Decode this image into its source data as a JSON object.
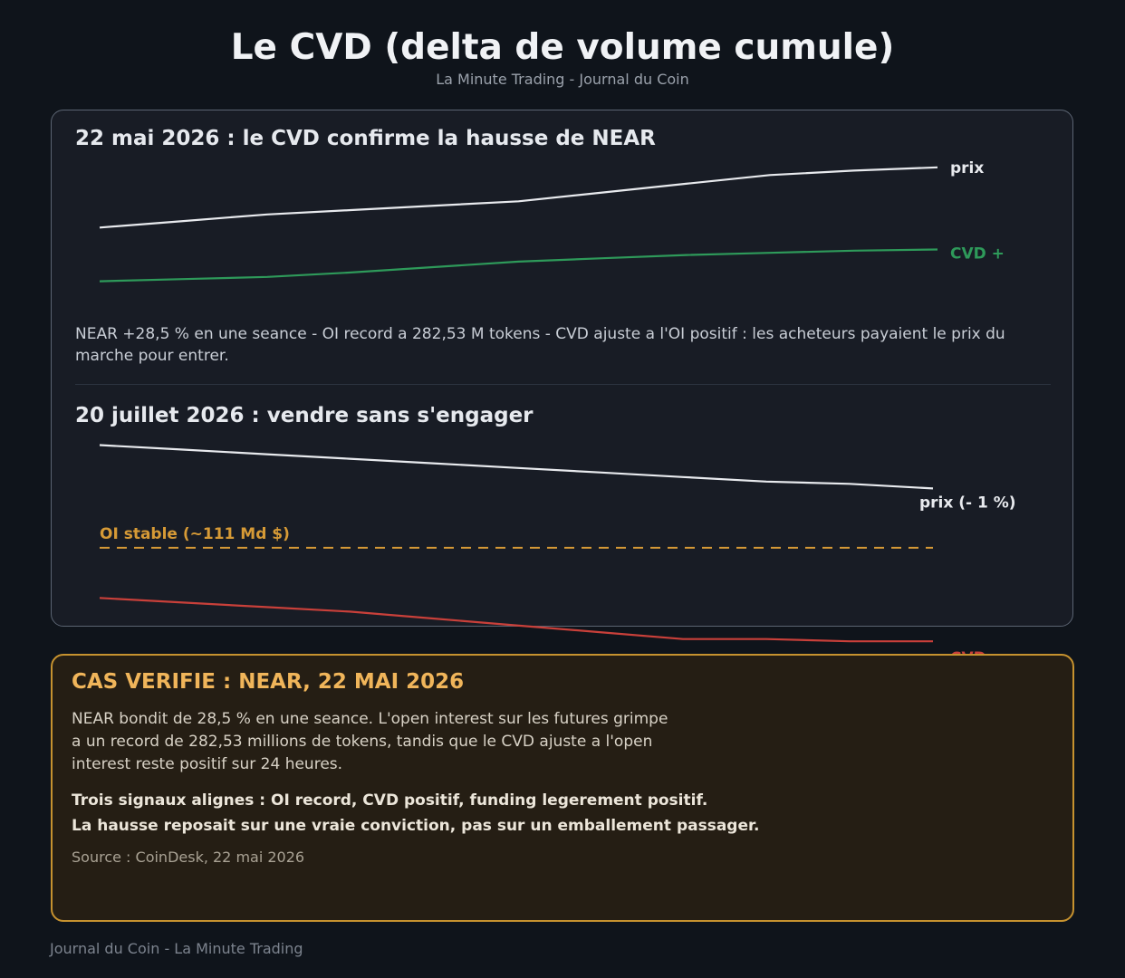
{
  "title": "Le CVD (delta de volume cumule)",
  "subtitle": "La Minute Trading - Journal du Coin",
  "colors": {
    "price": "#e8eaee",
    "cvd_positive": "#2e9a5a",
    "cvd_negative": "#c9403a",
    "oi": "#d69a36",
    "accent": "#f0b55a"
  },
  "section1": {
    "title": "22 mai 2026 : le CVD confirme la hausse de NEAR",
    "description": "NEAR +28,5 % en une seance - OI record a 282,53 M tokens - CVD ajuste a l'OI positif : les acheteurs payaient le prix du marche pour entrer."
  },
  "section2": {
    "title": "20 juillet 2026 : vendre sans s'engager"
  },
  "chart_data": [
    {
      "type": "line",
      "title": "22 mai 2026 : le CVD confirme la hausse de NEAR",
      "x": [
        0,
        1,
        2,
        3,
        4,
        5,
        6,
        7,
        8,
        9,
        10
      ],
      "ylim": [
        0,
        100
      ],
      "series": [
        {
          "name": "prix",
          "color": "#e8eaee",
          "values": [
            46,
            52,
            58,
            62,
            66,
            70,
            78,
            86,
            94,
            98,
            101
          ]
        },
        {
          "name": "CVD +",
          "color": "#2e9a5a",
          "values": [
            -3,
            -1,
            1,
            5,
            10,
            15,
            18,
            21,
            23,
            25,
            26
          ]
        }
      ]
    },
    {
      "type": "line",
      "title": "20 juillet 2026 : vendre sans s'engager",
      "x": [
        0,
        1,
        2,
        3,
        4,
        5,
        6,
        7,
        8,
        9,
        10
      ],
      "ylim": [
        0,
        100
      ],
      "series": [
        {
          "name": "prix (- 1 %)",
          "color": "#e8eaee",
          "values": [
            101,
            99,
            97,
            95,
            93,
            91,
            89,
            87,
            85,
            84,
            82
          ]
        },
        {
          "name": "OI stable (~111 Md $)",
          "color": "#d69a36",
          "style": "dashed",
          "values": [
            56,
            56,
            56,
            56,
            56,
            56,
            56,
            56,
            56,
            56,
            56
          ]
        },
        {
          "name": "CVD -",
          "color": "#c9403a",
          "values": [
            34,
            32,
            30,
            28,
            25,
            22,
            19,
            16,
            16,
            15,
            15
          ]
        }
      ]
    }
  ],
  "case": {
    "title": "CAS VERIFIE : NEAR, 22 MAI 2026",
    "body": "NEAR bondit de 28,5 % en une seance. L'open interest sur les futures grimpe a un record de 282,53 millions de tokens, tandis que le CVD ajuste a l'open interest reste positif sur 24 heures.",
    "emphasis_line1": "Trois signaux alignes : OI record, CVD positif, funding legerement positif.",
    "emphasis_line2": "La hausse reposait sur une vraie conviction, pas sur un emballement passager.",
    "source": "Source : CoinDesk, 22 mai 2026"
  },
  "footer": "Journal du Coin - La Minute Trading"
}
